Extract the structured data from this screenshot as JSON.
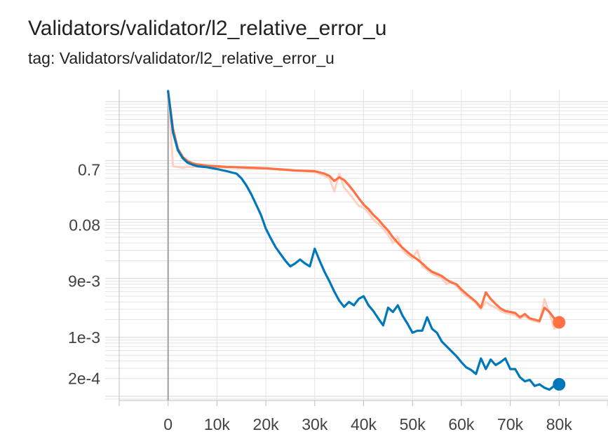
{
  "card": {
    "title": "Validators/validator/l2_relative_error_u",
    "subtitle": "tag: Validators/validator/l2_relative_error_u"
  },
  "chart_data": {
    "type": "line",
    "title": "Validators/validator/l2_relative_error_u",
    "subtitle": "tag: Validators/validator/l2_relative_error_u",
    "xlabel": "",
    "ylabel": "",
    "y_scale": "log",
    "xlim": [
      -10000,
      90000
    ],
    "ylim": [
      8.5e-05,
      16
    ],
    "x_ticks": [
      {
        "value": 0,
        "label": "0"
      },
      {
        "value": 10000,
        "label": "10k"
      },
      {
        "value": 20000,
        "label": "20k"
      },
      {
        "value": 30000,
        "label": "30k"
      },
      {
        "value": 40000,
        "label": "40k"
      },
      {
        "value": 50000,
        "label": "50k"
      },
      {
        "value": 60000,
        "label": "60k"
      },
      {
        "value": 70000,
        "label": "70k"
      },
      {
        "value": 80000,
        "label": "80k"
      }
    ],
    "y_ticks": [
      {
        "value": 0.7,
        "label": "0.7"
      },
      {
        "value": 0.08,
        "label": "0.08"
      },
      {
        "value": 0.009,
        "label": "9e-3"
      },
      {
        "value": 0.001,
        "label": "1e-3"
      },
      {
        "value": 0.0002,
        "label": "2e-4"
      }
    ],
    "grid": true,
    "legend": "none",
    "series": [
      {
        "color": "#ff7043",
        "raw_color": "#ffccbc",
        "x": [
          0,
          1000,
          2000,
          3000,
          4000,
          5000,
          6000,
          8000,
          10000,
          12000,
          14000,
          16000,
          18000,
          20000,
          22000,
          24000,
          26000,
          28000,
          30000,
          32000,
          33000,
          34000,
          35000,
          36000,
          37000,
          38000,
          39000,
          40000,
          41000,
          42000,
          43000,
          44000,
          45000,
          46000,
          47000,
          48000,
          49000,
          50000,
          51000,
          52000,
          53000,
          54000,
          55000,
          56000,
          57000,
          58000,
          59000,
          60000,
          61000,
          62000,
          63000,
          64000,
          65000,
          66000,
          67000,
          68000,
          69000,
          70000,
          71000,
          72000,
          73000,
          74000,
          75000,
          76000,
          77000,
          78000,
          79000,
          80000
        ],
        "y": [
          15,
          3.5,
          1.6,
          1.15,
          0.98,
          0.9,
          0.86,
          0.82,
          0.8,
          0.78,
          0.77,
          0.76,
          0.75,
          0.74,
          0.72,
          0.7,
          0.68,
          0.67,
          0.66,
          0.6,
          0.55,
          0.45,
          0.52,
          0.47,
          0.38,
          0.3,
          0.23,
          0.18,
          0.15,
          0.12,
          0.1,
          0.08,
          0.065,
          0.05,
          0.04,
          0.033,
          0.028,
          0.024,
          0.021,
          0.018,
          0.015,
          0.013,
          0.012,
          0.011,
          0.0095,
          0.0085,
          0.008,
          0.0065,
          0.0055,
          0.0047,
          0.004,
          0.0032,
          0.0058,
          0.0045,
          0.0037,
          0.0031,
          0.0028,
          0.0027,
          0.0026,
          0.0022,
          0.0025,
          0.0021,
          0.002,
          0.0019,
          0.0032,
          0.0027,
          0.0021,
          0.0018
        ],
        "raw_y": [
          15,
          0.8,
          0.78,
          0.75,
          0.79,
          0.77,
          0.8,
          0.79,
          0.78,
          0.76,
          0.77,
          0.75,
          0.74,
          0.73,
          0.71,
          0.69,
          0.68,
          0.66,
          0.64,
          0.55,
          0.5,
          0.3,
          0.6,
          0.35,
          0.28,
          0.22,
          0.17,
          0.16,
          0.13,
          0.1,
          0.085,
          0.07,
          0.055,
          0.04,
          0.05,
          0.03,
          0.025,
          0.022,
          0.03,
          0.016,
          0.014,
          0.012,
          0.011,
          0.01,
          0.008,
          0.009,
          0.0075,
          0.006,
          0.005,
          0.0045,
          0.0038,
          0.003,
          0.004,
          0.0035,
          0.0032,
          0.0028,
          0.0026,
          0.0025,
          0.0024,
          0.0021,
          0.0023,
          0.002,
          0.0019,
          0.0018,
          0.0045,
          0.0026,
          0.0014,
          0.0017
        ]
      },
      {
        "color": "#0077bb",
        "raw_color": "#bcdcef",
        "x": [
          0,
          1000,
          2000,
          3000,
          4000,
          5000,
          6000,
          8000,
          10000,
          12000,
          14000,
          15000,
          16000,
          17000,
          18000,
          19000,
          20000,
          21000,
          22000,
          23000,
          24000,
          25000,
          26000,
          27000,
          28000,
          29000,
          30000,
          31000,
          32000,
          33000,
          34000,
          35000,
          36000,
          37000,
          38000,
          39000,
          40000,
          41000,
          42000,
          43000,
          44000,
          45000,
          46000,
          47000,
          48000,
          49000,
          50000,
          51000,
          52000,
          53000,
          54000,
          55000,
          56000,
          57000,
          58000,
          59000,
          60000,
          61000,
          62000,
          63000,
          64000,
          65000,
          66000,
          67000,
          68000,
          69000,
          70000,
          71000,
          72000,
          73000,
          74000,
          75000,
          76000,
          77000,
          78000,
          79000,
          80000
        ],
        "y": [
          15,
          3.0,
          1.5,
          1.1,
          0.92,
          0.85,
          0.8,
          0.77,
          0.72,
          0.66,
          0.6,
          0.5,
          0.38,
          0.27,
          0.18,
          0.12,
          0.07,
          0.048,
          0.034,
          0.026,
          0.02,
          0.016,
          0.018,
          0.021,
          0.018,
          0.016,
          0.032,
          0.02,
          0.013,
          0.009,
          0.006,
          0.0042,
          0.0033,
          0.004,
          0.0035,
          0.0045,
          0.005,
          0.0035,
          0.0028,
          0.0021,
          0.0016,
          0.0032,
          0.0027,
          0.0035,
          0.0023,
          0.0017,
          0.0012,
          0.0013,
          0.0013,
          0.0022,
          0.0014,
          0.0012,
          0.00085,
          0.0007,
          0.00058,
          0.00048,
          0.00038,
          0.00031,
          0.00028,
          0.00024,
          0.00044,
          0.00029,
          0.00042,
          0.00034,
          0.00038,
          0.00044,
          0.00029,
          0.00029,
          0.00021,
          0.00018,
          0.00019,
          0.00015,
          0.00016,
          0.00014,
          0.00013,
          0.00015,
          0.00016
        ]
      }
    ]
  }
}
